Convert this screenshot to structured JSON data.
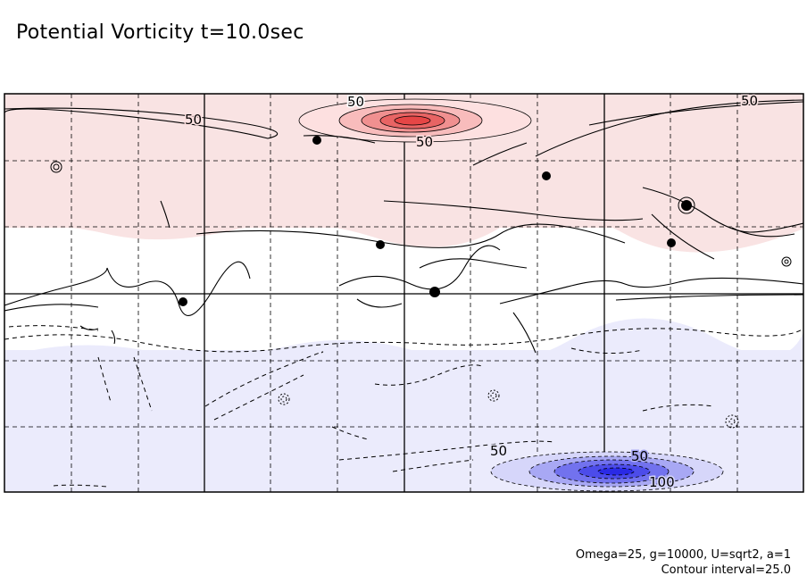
{
  "chart_data": {
    "type": "contour",
    "title": "Potential Vorticity t=10.0sec",
    "contour_labels": [
      "50",
      "50",
      "50",
      "50",
      "50",
      "50",
      "100"
    ],
    "positive_color": "#f9e3e3",
    "negative_color": "#ebebfc",
    "red_core_color": "#e64646",
    "blue_core_color": "#2a2ae6",
    "grid": "dashed",
    "annotations": [
      "Omega=25, g=10000, U=sqrt2, a=1",
      "Contour interval=25.0"
    ]
  }
}
